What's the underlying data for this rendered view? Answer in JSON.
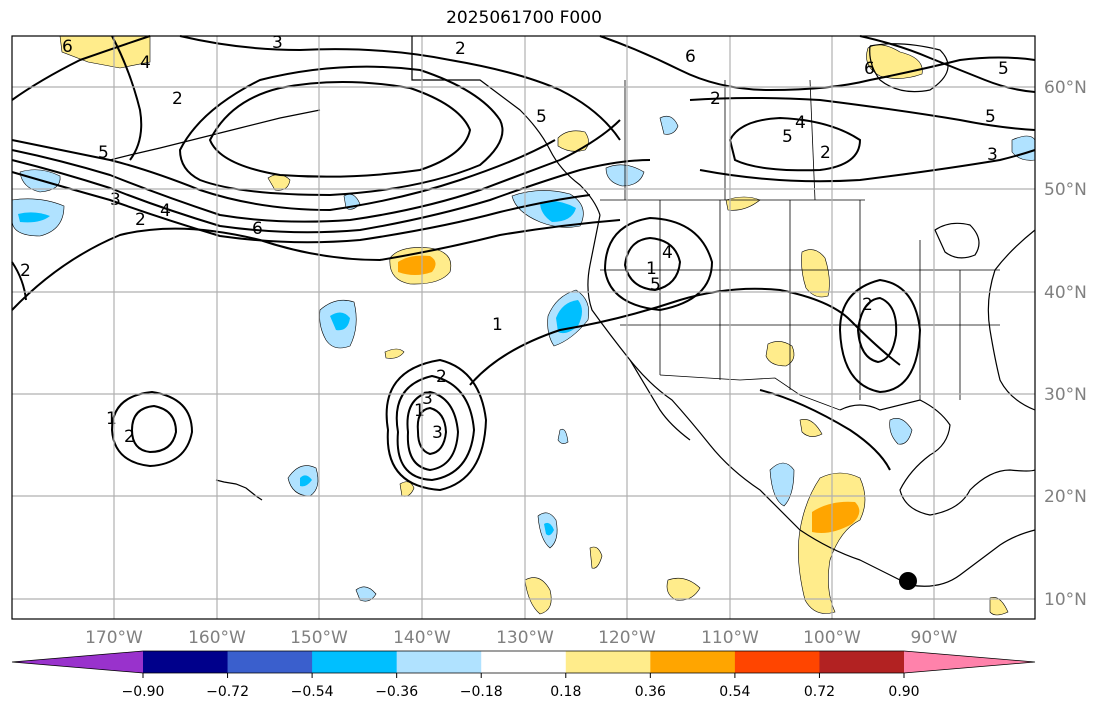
{
  "title": "2025061700 F000",
  "lon_ticks": [
    "170°W",
    "160°W",
    "150°W",
    "140°W",
    "130°W",
    "120°W",
    "110°W",
    "100°W",
    "90°W"
  ],
  "lat_ticks": [
    "60°N",
    "50°N",
    "40°N",
    "30°N",
    "20°N",
    "10°N"
  ],
  "colorbar": {
    "colors": [
      "#9932cc",
      "#00008b",
      "#3a5fcd",
      "#00bfff",
      "#b0e2ff",
      "#ffffff",
      "#ffec8b",
      "#ffa500",
      "#ff4500",
      "#b22222",
      "#ff82ab"
    ],
    "labels": [
      "−0.90",
      "−0.72",
      "−0.54",
      "−0.36",
      "−0.18",
      "0.18",
      "0.36",
      "0.54",
      "0.72",
      "0.90"
    ]
  },
  "contour_labels": [
    "6",
    "3",
    "2",
    "2",
    "6",
    "5",
    "5",
    "3",
    "2",
    "4",
    "6",
    "5",
    "4",
    "5",
    "3",
    "2",
    "1",
    "2",
    "1",
    "3",
    "2",
    "5",
    "4",
    "1",
    "2",
    "2",
    "1",
    "2",
    "4",
    "5",
    "3",
    "6"
  ],
  "colors": {
    "positive_light": "#ffec8b",
    "positive_mid": "#ffa500",
    "negative_light": "#b0e2ff",
    "negative_mid": "#00bfff",
    "grid": "#b0b0b0"
  }
}
